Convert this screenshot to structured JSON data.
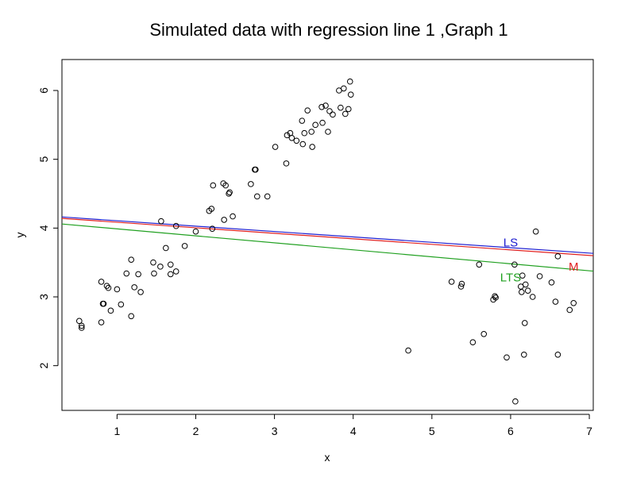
{
  "chart_data": {
    "type": "scatter",
    "title": "Simulated data with regression line 1 ,Graph 1",
    "xlabel": "x",
    "ylabel": "y",
    "xlim": [
      0.3,
      7.05
    ],
    "ylim": [
      1.35,
      6.45
    ],
    "x_ticks": [
      "1",
      "2",
      "3",
      "4",
      "5",
      "6",
      "7"
    ],
    "y_ticks": [
      "2",
      "3",
      "4",
      "5",
      "6"
    ],
    "grid": false,
    "legend": "none",
    "points": [
      [
        0.52,
        2.65
      ],
      [
        0.55,
        2.58
      ],
      [
        0.55,
        2.55
      ],
      [
        0.8,
        2.63
      ],
      [
        0.8,
        3.22
      ],
      [
        0.82,
        2.9
      ],
      [
        0.83,
        2.9
      ],
      [
        0.87,
        3.16
      ],
      [
        0.89,
        3.13
      ],
      [
        0.92,
        2.8
      ],
      [
        1.0,
        3.11
      ],
      [
        1.05,
        2.89
      ],
      [
        1.12,
        3.34
      ],
      [
        1.18,
        3.54
      ],
      [
        1.18,
        2.72
      ],
      [
        1.22,
        3.14
      ],
      [
        1.27,
        3.33
      ],
      [
        1.3,
        3.07
      ],
      [
        1.46,
        3.5
      ],
      [
        1.47,
        3.34
      ],
      [
        1.55,
        3.44
      ],
      [
        1.56,
        4.1
      ],
      [
        1.62,
        3.71
      ],
      [
        1.68,
        3.33
      ],
      [
        1.68,
        3.47
      ],
      [
        1.75,
        4.03
      ],
      [
        1.75,
        3.37
      ],
      [
        1.86,
        3.74
      ],
      [
        2.0,
        3.95
      ],
      [
        2.17,
        4.25
      ],
      [
        2.2,
        4.28
      ],
      [
        2.21,
        3.99
      ],
      [
        2.22,
        4.62
      ],
      [
        2.35,
        4.65
      ],
      [
        2.36,
        4.12
      ],
      [
        2.38,
        4.62
      ],
      [
        2.42,
        4.5
      ],
      [
        2.43,
        4.52
      ],
      [
        2.47,
        4.17
      ],
      [
        2.7,
        4.64
      ],
      [
        2.75,
        4.85
      ],
      [
        2.76,
        4.85
      ],
      [
        2.78,
        4.46
      ],
      [
        2.91,
        4.46
      ],
      [
        3.01,
        5.18
      ],
      [
        3.15,
        4.94
      ],
      [
        3.16,
        5.35
      ],
      [
        3.2,
        5.38
      ],
      [
        3.22,
        5.31
      ],
      [
        3.28,
        5.27
      ],
      [
        3.35,
        5.56
      ],
      [
        3.36,
        5.22
      ],
      [
        3.38,
        5.38
      ],
      [
        3.42,
        5.71
      ],
      [
        3.47,
        5.4
      ],
      [
        3.48,
        5.18
      ],
      [
        3.52,
        5.5
      ],
      [
        3.6,
        5.76
      ],
      [
        3.61,
        5.53
      ],
      [
        3.65,
        5.78
      ],
      [
        3.68,
        5.4
      ],
      [
        3.7,
        5.7
      ],
      [
        3.74,
        5.65
      ],
      [
        3.82,
        6.0
      ],
      [
        3.84,
        5.75
      ],
      [
        3.88,
        6.03
      ],
      [
        3.9,
        5.66
      ],
      [
        3.94,
        5.73
      ],
      [
        3.96,
        6.13
      ],
      [
        3.97,
        5.94
      ],
      [
        4.7,
        2.22
      ],
      [
        5.25,
        3.22
      ],
      [
        5.37,
        3.15
      ],
      [
        5.38,
        3.19
      ],
      [
        5.52,
        2.34
      ],
      [
        5.6,
        3.47
      ],
      [
        5.66,
        2.46
      ],
      [
        5.78,
        2.96
      ],
      [
        5.8,
        3.01
      ],
      [
        5.81,
        2.99
      ],
      [
        5.95,
        2.12
      ],
      [
        6.05,
        3.47
      ],
      [
        6.06,
        1.48
      ],
      [
        6.13,
        3.15
      ],
      [
        6.14,
        3.07
      ],
      [
        6.15,
        3.31
      ],
      [
        6.17,
        2.16
      ],
      [
        6.18,
        2.62
      ],
      [
        6.19,
        3.18
      ],
      [
        6.22,
        3.09
      ],
      [
        6.28,
        3.0
      ],
      [
        6.32,
        3.95
      ],
      [
        6.37,
        3.3
      ],
      [
        6.52,
        3.21
      ],
      [
        6.57,
        2.93
      ],
      [
        6.6,
        2.16
      ],
      [
        6.6,
        3.59
      ],
      [
        6.75,
        2.81
      ],
      [
        6.8,
        2.91
      ]
    ],
    "regression_lines": [
      {
        "name": "LS",
        "intercept": 4.185,
        "slope": -0.0784,
        "color": "#2020d0",
        "label_x": 6.0,
        "label_y": 3.79
      },
      {
        "name": "M",
        "intercept": 4.165,
        "slope": -0.0803,
        "color": "#e02020",
        "label_x": 6.8,
        "label_y": 3.44
      },
      {
        "name": "LTS",
        "intercept": 4.09,
        "slope": -0.1015,
        "color": "#20a020",
        "label_x": 6.0,
        "label_y": 3.28
      }
    ]
  }
}
